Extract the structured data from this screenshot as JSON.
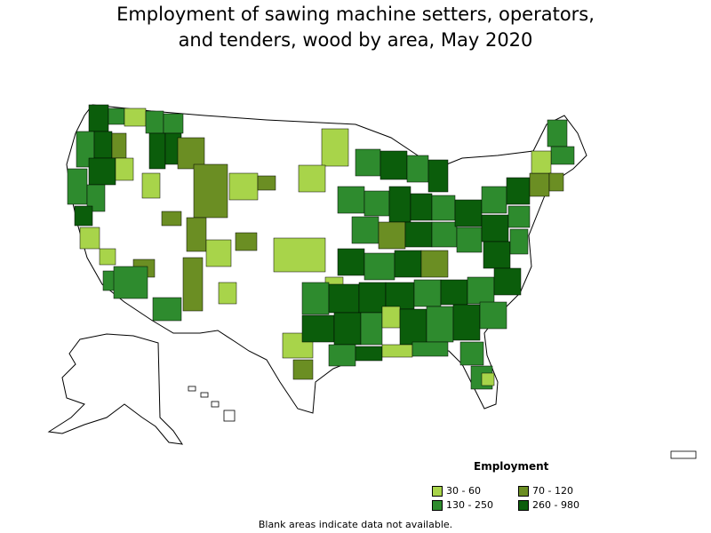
{
  "title_line1": "Employment of sawing machine setters, operators,",
  "title_line2": "and tenders, wood by area, May 2020",
  "legend": {
    "title": "Employment",
    "bins": [
      {
        "label": "30 - 60",
        "color": "#a8d44a"
      },
      {
        "label": "70 - 120",
        "color": "#6b8e23"
      },
      {
        "label": "130 - 250",
        "color": "#2e8b2e"
      },
      {
        "label": "260 - 980",
        "color": "#0b5d0b"
      }
    ]
  },
  "footnote": "Blank areas indicate data not available."
}
